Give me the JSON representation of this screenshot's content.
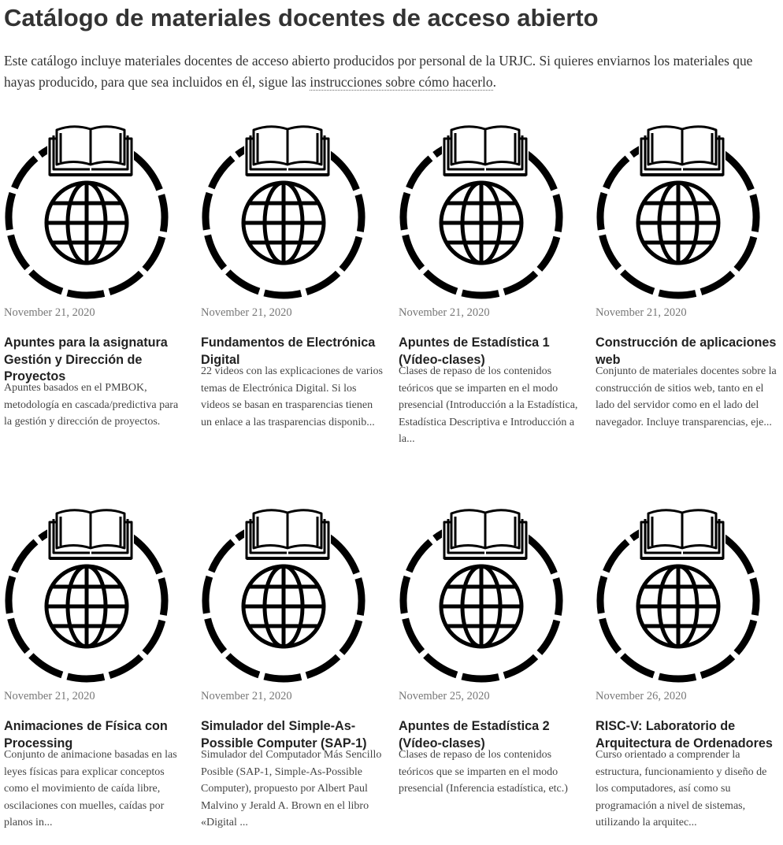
{
  "page": {
    "title": "Catálogo de materiales docentes de acceso abierto",
    "intro_text": "Este catálogo incluye materiales docentes de acceso abierto producidos por personal de la URJC. Si quieres enviarnos los materiales que hayas producido, para que sea incluidos en él, sigue las ",
    "intro_link": "instrucciones sobre cómo hacerlo",
    "intro_end": "."
  },
  "cards": [
    {
      "image": "open-access-book-globe-icon",
      "date": "November 21, 2020",
      "title": "Apuntes para la asignatura Gestión y Dirección de Proyectos",
      "excerpt": "Apuntes basados en el PMBOK, metodología en cascada/predictiva para la gestión y dirección de proyectos."
    },
    {
      "image": "open-access-book-globe-icon",
      "date": "November 21, 2020",
      "title": "Fundamentos de Electrónica Digital",
      "excerpt": "22 videos con las explicaciones de varios temas de Electrónica Digital. Si los videos se basan en trasparencias tienen un enlace a las trasparencias disponib..."
    },
    {
      "image": "open-access-book-globe-icon",
      "date": "November 21, 2020",
      "title": "Apuntes de Estadística 1 (Vídeo-clases)",
      "excerpt": "Clases de repaso de los contenidos teóricos que se imparten en el modo presencial (Introducción a la Estadística, Estadística Descriptiva e Introducción a la..."
    },
    {
      "image": "open-access-book-globe-icon",
      "date": "November 21, 2020",
      "title": "Construcción de aplicaciones web",
      "excerpt": "Conjunto de materiales docentes sobre la construcción de sitios web, tanto en el lado del servidor como en el lado del navegador. Incluye transparencias, eje..."
    },
    {
      "image": "open-access-book-globe-icon",
      "date": "November 21, 2020",
      "title": "Animaciones de Física con Processing",
      "excerpt": "Conjunto de animacione basadas en las leyes físicas para explicar conceptos como el movimiento de caída libre, oscilaciones con muelles, caídas por planos in..."
    },
    {
      "image": "open-access-book-globe-icon",
      "date": "November 21, 2020",
      "title": "Simulador del Simple-As-Possible Computer (SAP-1)",
      "excerpt": "Simulador del Computador Más Sencillo Posible (SAP-1, Simple-As-Possible Computer), propuesto por Albert Paul Malvino y Jerald A. Brown en el libro «Digital ..."
    },
    {
      "image": "open-access-book-globe-icon",
      "date": "November 25, 2020",
      "title": "Apuntes de Estadística 2 (Vídeo-clases)",
      "excerpt": "Clases de repaso de los contenidos teóricos que se imparten en el modo presencial (Inferencia estadística, etc.)"
    },
    {
      "image": "open-access-book-globe-icon",
      "date": "November 26, 2020",
      "title": "RISC-V: Laboratorio de Arquitectura de Ordenadores",
      "excerpt": "Curso orientado a comprender la estructura, funcionamiento y diseño de los computadores, así como su programación a nivel de sistemas, utilizando la arquitec..."
    }
  ]
}
